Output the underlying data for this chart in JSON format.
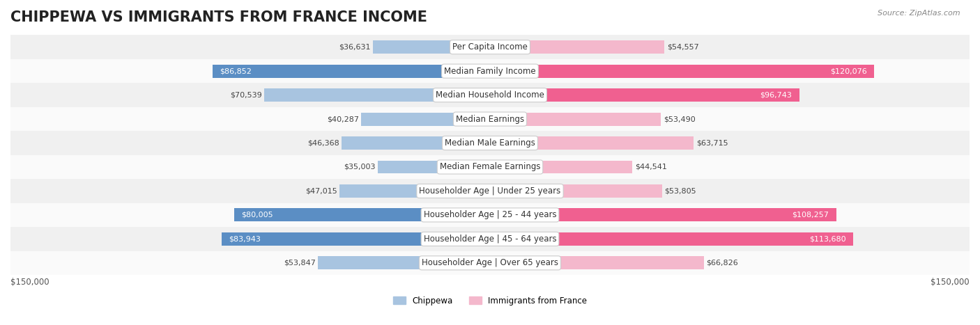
{
  "title": "CHIPPEWA VS IMMIGRANTS FROM FRANCE INCOME",
  "source": "Source: ZipAtlas.com",
  "categories": [
    "Per Capita Income",
    "Median Family Income",
    "Median Household Income",
    "Median Earnings",
    "Median Male Earnings",
    "Median Female Earnings",
    "Householder Age | Under 25 years",
    "Householder Age | 25 - 44 years",
    "Householder Age | 45 - 64 years",
    "Householder Age | Over 65 years"
  ],
  "chippewa_values": [
    36631,
    86852,
    70539,
    40287,
    46368,
    35003,
    47015,
    80005,
    83943,
    53847
  ],
  "france_values": [
    54557,
    120076,
    96743,
    53490,
    63715,
    44541,
    53805,
    108257,
    113680,
    66826
  ],
  "chippewa_labels": [
    "$36,631",
    "$86,852",
    "$70,539",
    "$40,287",
    "$46,368",
    "$35,003",
    "$47,015",
    "$80,005",
    "$83,943",
    "$53,847"
  ],
  "france_labels": [
    "$54,557",
    "$120,076",
    "$96,743",
    "$53,490",
    "$63,715",
    "$44,541",
    "$53,805",
    "$108,257",
    "$113,680",
    "$66,826"
  ],
  "chippewa_color_light": "#a8c4e0",
  "chippewa_color_dark": "#5b8ec4",
  "france_color_light": "#f4b8cc",
  "france_color_dark": "#f06090",
  "max_val": 150000,
  "bg_color": "#f5f5f5",
  "row_bg_color": "#efefef",
  "legend_chippewa": "Chippewa",
  "legend_france": "Immigrants from France",
  "xlabel_left": "$150,000",
  "xlabel_right": "$150,000",
  "title_fontsize": 15,
  "label_fontsize": 8.5,
  "cat_fontsize": 8.5,
  "value_fontsize": 8
}
